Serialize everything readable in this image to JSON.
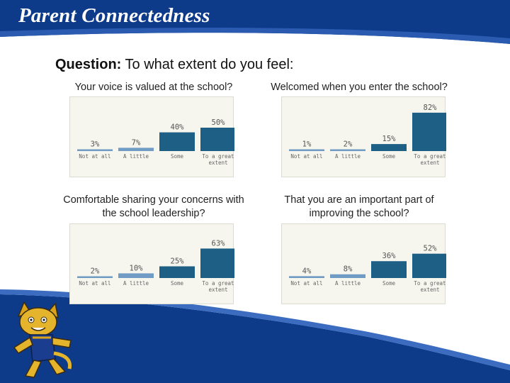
{
  "slide": {
    "title": "Parent Connectedness",
    "question_label": "Question:",
    "question_text": "To what extent do you feel:"
  },
  "colors": {
    "header_blue": "#0d3b8a",
    "bar_light": "#6f9bc4",
    "bar_dark": "#1e5f86",
    "label_text": "#555555"
  },
  "charts": {
    "c0": {
      "caption": "Your voice is valued at the school?"
    },
    "c1": {
      "caption": "Welcomed when you enter the school?"
    },
    "c2": {
      "caption": "Comfortable sharing your concerns with the school leadership?"
    },
    "c3": {
      "caption": "That you are an important part of improving the school?"
    }
  },
  "chart_data": [
    {
      "type": "bar",
      "title": "Your voice is valued at the school?",
      "categories": [
        "Not at all",
        "A little",
        "Some",
        "To a great extent"
      ],
      "value_labels": [
        "3%",
        "7%",
        "40%",
        "50%"
      ],
      "values": [
        3,
        7,
        40,
        50
      ],
      "ylim": [
        0,
        100
      ],
      "grid": false
    },
    {
      "type": "bar",
      "title": "Welcomed when you enter the school?",
      "categories": [
        "Not at all",
        "A little",
        "Some",
        "To a great extent"
      ],
      "value_labels": [
        "1%",
        "2%",
        "15%",
        "82%"
      ],
      "values": [
        1,
        2,
        15,
        82
      ],
      "ylim": [
        0,
        100
      ],
      "grid": false
    },
    {
      "type": "bar",
      "title": "Comfortable sharing your concerns with the school leadership?",
      "categories": [
        "Not at all",
        "A little",
        "Some",
        "To a great extent"
      ],
      "value_labels": [
        "2%",
        "10%",
        "25%",
        "63%"
      ],
      "values": [
        2,
        10,
        25,
        63
      ],
      "ylim": [
        0,
        100
      ],
      "grid": false
    },
    {
      "type": "bar",
      "title": "That you are an important part of improving the school?",
      "categories": [
        "Not at all",
        "A little",
        "Some",
        "To a great extent"
      ],
      "value_labels": [
        "4%",
        "8%",
        "36%",
        "52%"
      ],
      "values": [
        4,
        8,
        36,
        52
      ],
      "ylim": [
        0,
        100
      ],
      "grid": false
    }
  ]
}
